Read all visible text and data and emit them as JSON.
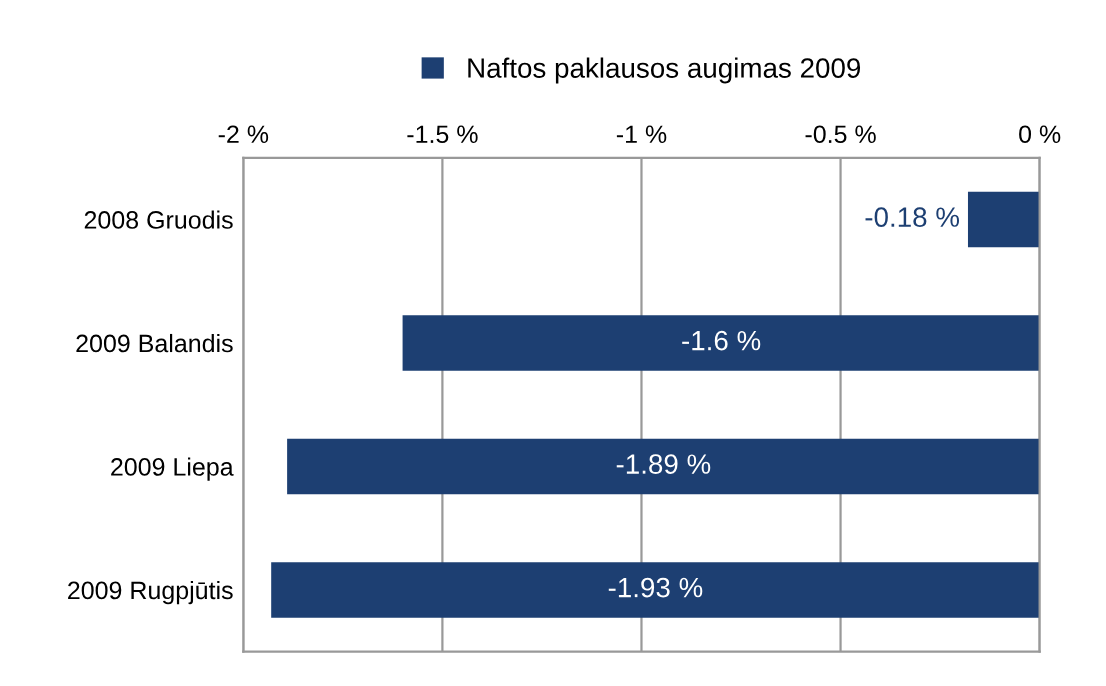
{
  "chart_data": {
    "type": "bar",
    "orientation": "horizontal",
    "categories": [
      "2008 Gruodis",
      "2009 Balandis",
      "2009 Liepa",
      "2009 Rugpjūtis"
    ],
    "series": [
      {
        "name": "Naftos paklausos augimas 2009",
        "color": "#1d3f72",
        "values": [
          -0.18,
          -1.6,
          -1.89,
          -1.93
        ],
        "value_labels": [
          "-0.18 %",
          "-1.6 %",
          "-1.89 %",
          "-1.93 %"
        ]
      }
    ],
    "xlim": [
      -2,
      0
    ],
    "xticks": [
      {
        "value": -2,
        "label": "-2 %"
      },
      {
        "value": -1.5,
        "label": "-1.5 %"
      },
      {
        "value": -1,
        "label": "-1 %"
      },
      {
        "value": -0.5,
        "label": "-0.5 %"
      },
      {
        "value": 0,
        "label": "0 %"
      }
    ],
    "grid": "x",
    "legend": "top"
  }
}
